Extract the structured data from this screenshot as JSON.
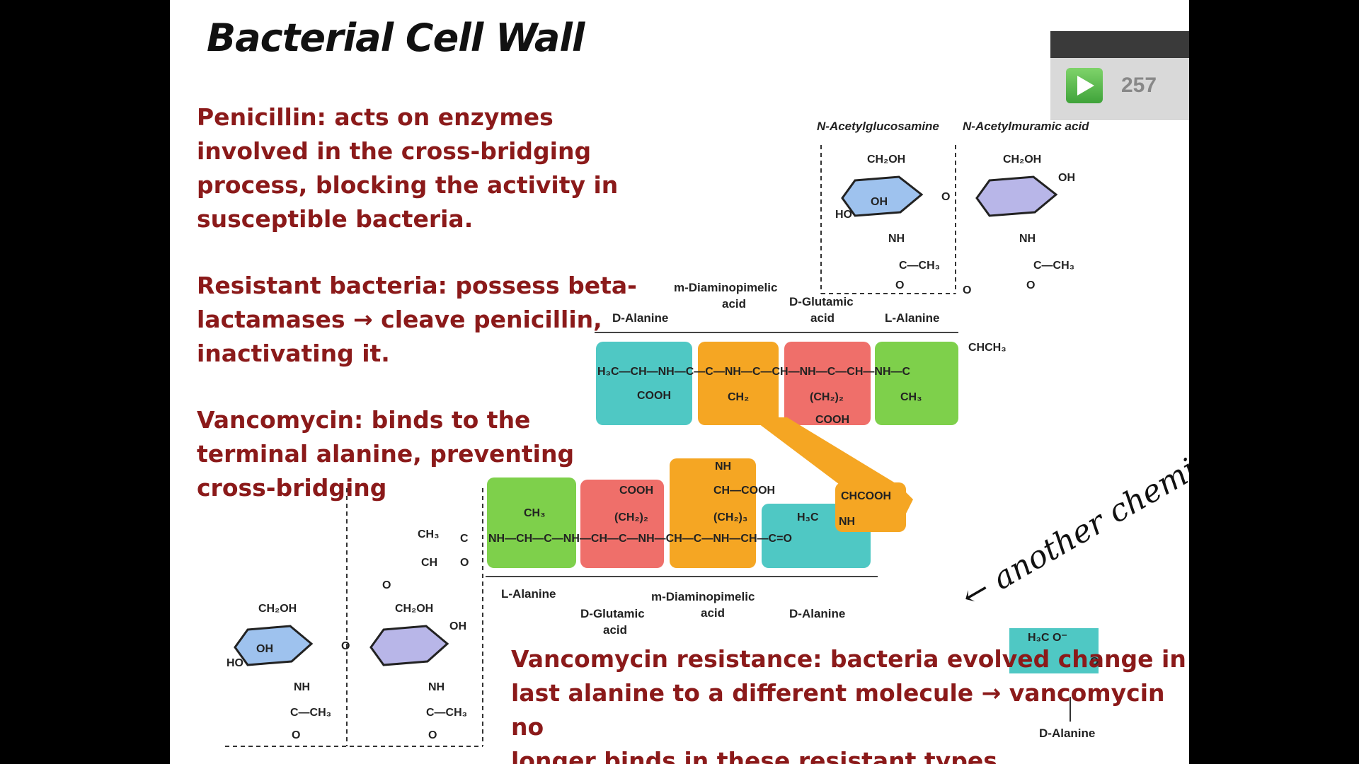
{
  "slide": {
    "title": "Bacterial Cell Wall",
    "penicillin_text": "Penicillin:  acts on enzymes\ninvolved in the cross-bridging\nprocess, blocking the activity in\nsusceptible bacteria.",
    "resistant_text": "Resistant bacteria:  possess beta-\nlactamases → cleave penicillin,\ninactivating it.",
    "vancomycin_text": "Vancomycin:  binds to the\nterminal alanine, preventing\ncross-bridging",
    "vanco_resistance_text": "Vancomycin resistance:  bacteria evolved change in\nlast alanine to a different molecule → vancomycin no\nlonger binds in these resistant types."
  },
  "player": {
    "count": "257"
  },
  "diagram": {
    "top_sugar_labels": {
      "glucosamine": "N-Acetylglucosamine",
      "muramic": "N-Acetylmuramic acid"
    },
    "top_peptide_labels": {
      "d_alanine": "D-Alanine",
      "m_dap_1": "m-Diaminopimelic",
      "m_dap_2": "acid",
      "d_glutamic_1": "D-Glutamic",
      "d_glutamic_2": "acid",
      "l_alanine": "L-Alanine"
    },
    "bottom_peptide_labels": {
      "l_alanine": "L-Alanine",
      "d_glutamic_1": "D-Glutamic",
      "d_glutamic_2": "acid",
      "m_dap_1": "m-Diaminopimelic",
      "m_dap_2": "acid",
      "d_alanine": "D-Alanine"
    },
    "alt_molecule_label": "D-Alanine",
    "handwritten": "← another chemical",
    "box_colors": {
      "teal": "#4fc8c4",
      "orange": "#f5a623",
      "red": "#ef6f6a",
      "green": "#7ed04b",
      "sugar": "#b8b6e8"
    }
  }
}
